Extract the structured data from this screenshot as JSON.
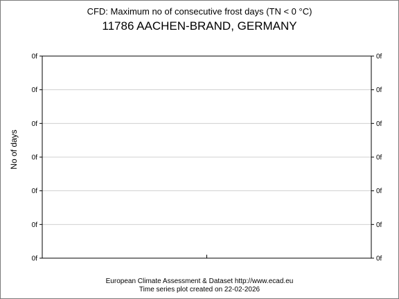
{
  "chart_data": {
    "type": "line",
    "title": "CFD: Maximum no of consecutive frost days (TN < 0 °C)",
    "subtitle": "11786 AACHEN-BRAND, GERMANY",
    "ylabel": "No of days",
    "y_tick_labels": [
      "0f",
      "0f",
      "0f",
      "0f",
      "0f",
      "0f",
      "0f"
    ],
    "series": [],
    "grid": true,
    "legend": "none"
  },
  "footer": {
    "line1": "European Climate Assessment & Dataset  http://www.ecad.eu",
    "line2": "Time series plot created on 22-02-2026"
  },
  "colors": {
    "axis": "#000000",
    "grid": "#d0d0d0",
    "frame": "#7a7a7a"
  }
}
